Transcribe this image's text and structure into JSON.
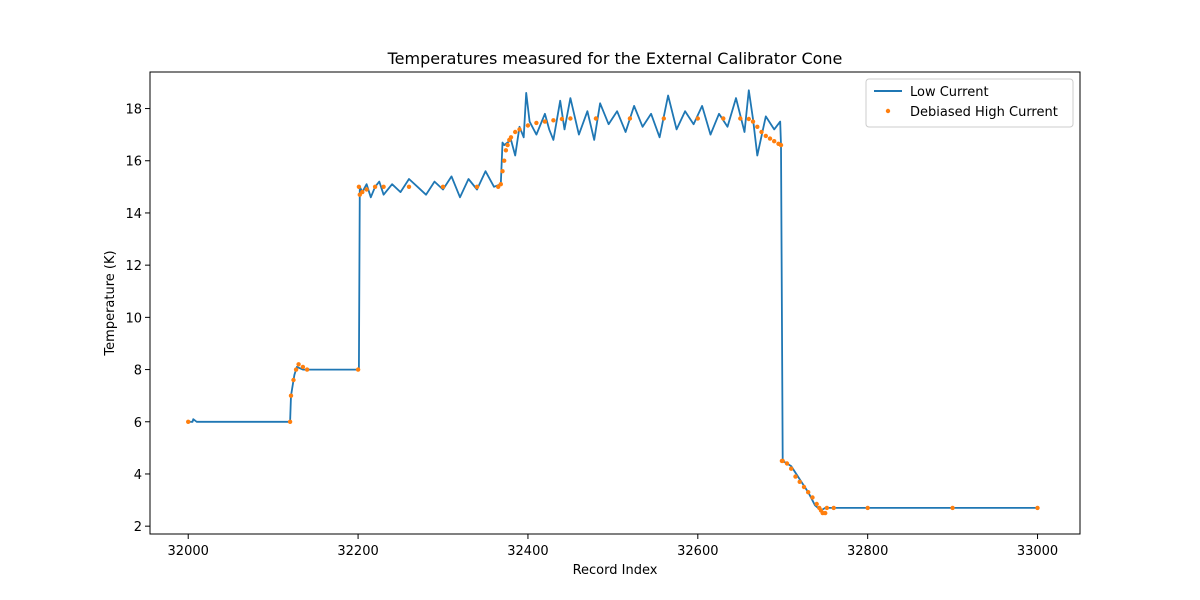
{
  "chart_data": {
    "type": "line",
    "title": "Temperatures measured for the External Calibrator Cone",
    "xlabel": "Record Index",
    "ylabel": "Temperature (K)",
    "xlim": [
      31955,
      33050
    ],
    "ylim": [
      1.7,
      19.4
    ],
    "xticks": [
      32000,
      32200,
      32400,
      32600,
      32800,
      33000
    ],
    "yticks": [
      2,
      4,
      6,
      8,
      10,
      12,
      14,
      16,
      18
    ],
    "grid": false,
    "legend_position": "top-right",
    "series": [
      {
        "name": "Low Current",
        "kind": "line",
        "color": "#1f77b4",
        "x": [
          32000,
          32005,
          32006,
          32010,
          32060,
          32120,
          32121,
          32125,
          32128,
          32135,
          32150,
          32180,
          32201,
          32202,
          32205,
          32210,
          32215,
          32220,
          32225,
          32230,
          32240,
          32250,
          32260,
          32270,
          32280,
          32290,
          32300,
          32310,
          32320,
          32330,
          32340,
          32350,
          32360,
          32368,
          32370,
          32372,
          32380,
          32385,
          32390,
          32395,
          32398,
          32402,
          32410,
          32420,
          32425,
          32430,
          32438,
          32443,
          32450,
          32460,
          32470,
          32478,
          32485,
          32495,
          32505,
          32515,
          32525,
          32535,
          32545,
          32555,
          32565,
          32575,
          32585,
          32595,
          32605,
          32615,
          32625,
          32635,
          32645,
          32655,
          32660,
          32665,
          32670,
          32680,
          32690,
          32697,
          32698,
          32700,
          32710,
          32720,
          32730,
          32738,
          32745,
          32750,
          32760,
          32800,
          32900,
          33000
        ],
        "y": [
          6.0,
          6.0,
          6.1,
          6.0,
          6.0,
          6.0,
          7.0,
          7.8,
          8.1,
          8.0,
          8.0,
          8.0,
          8.0,
          15.0,
          14.8,
          15.1,
          14.6,
          15.0,
          15.2,
          14.7,
          15.1,
          14.8,
          15.3,
          15.0,
          14.7,
          15.2,
          14.9,
          15.4,
          14.6,
          15.3,
          14.9,
          15.6,
          15.0,
          15.1,
          16.7,
          16.6,
          16.8,
          16.2,
          17.3,
          16.9,
          18.6,
          17.5,
          17.0,
          17.8,
          17.2,
          16.8,
          18.3,
          17.2,
          18.4,
          17.0,
          17.9,
          16.8,
          18.2,
          17.4,
          17.9,
          17.1,
          18.1,
          17.3,
          17.8,
          16.9,
          18.5,
          17.2,
          17.9,
          17.4,
          18.1,
          17.0,
          17.8,
          17.3,
          18.4,
          17.1,
          18.7,
          17.6,
          16.2,
          17.7,
          17.2,
          17.5,
          16.6,
          4.5,
          4.3,
          3.8,
          3.3,
          2.8,
          2.6,
          2.7,
          2.7,
          2.7,
          2.7,
          2.7
        ]
      },
      {
        "name": "Debiased High Current",
        "kind": "scatter",
        "color": "#ff7f0e",
        "x": [
          32000,
          32120,
          32121,
          32124,
          32127,
          32130,
          32135,
          32140,
          32200,
          32201,
          32202,
          32205,
          32210,
          32220,
          32230,
          32260,
          32300,
          32340,
          32365,
          32368,
          32370,
          32372,
          32374,
          32376,
          32378,
          32380,
          32385,
          32390,
          32400,
          32410,
          32420,
          32430,
          32440,
          32450,
          32480,
          32520,
          32560,
          32600,
          32630,
          32650,
          32660,
          32665,
          32670,
          32675,
          32680,
          32685,
          32690,
          32695,
          32698,
          32699,
          32700,
          32705,
          32710,
          32715,
          32720,
          32725,
          32730,
          32735,
          32740,
          32743,
          32745,
          32747,
          32750,
          32752,
          32760,
          32800,
          32900,
          33000
        ],
        "y": [
          6.0,
          6.0,
          7.0,
          7.6,
          8.0,
          8.2,
          8.1,
          8.0,
          8.0,
          15.0,
          14.7,
          14.8,
          14.9,
          15.0,
          15.0,
          15.0,
          15.0,
          15.0,
          15.0,
          15.1,
          15.6,
          16.0,
          16.4,
          16.6,
          16.8,
          16.9,
          17.1,
          17.2,
          17.35,
          17.45,
          17.5,
          17.55,
          17.6,
          17.62,
          17.62,
          17.62,
          17.62,
          17.62,
          17.62,
          17.62,
          17.6,
          17.5,
          17.3,
          17.1,
          16.95,
          16.85,
          16.75,
          16.65,
          16.6,
          4.5,
          4.5,
          4.4,
          4.2,
          3.9,
          3.7,
          3.5,
          3.3,
          3.1,
          2.85,
          2.7,
          2.6,
          2.5,
          2.5,
          2.7,
          2.7,
          2.7,
          2.7,
          2.7
        ]
      }
    ]
  }
}
